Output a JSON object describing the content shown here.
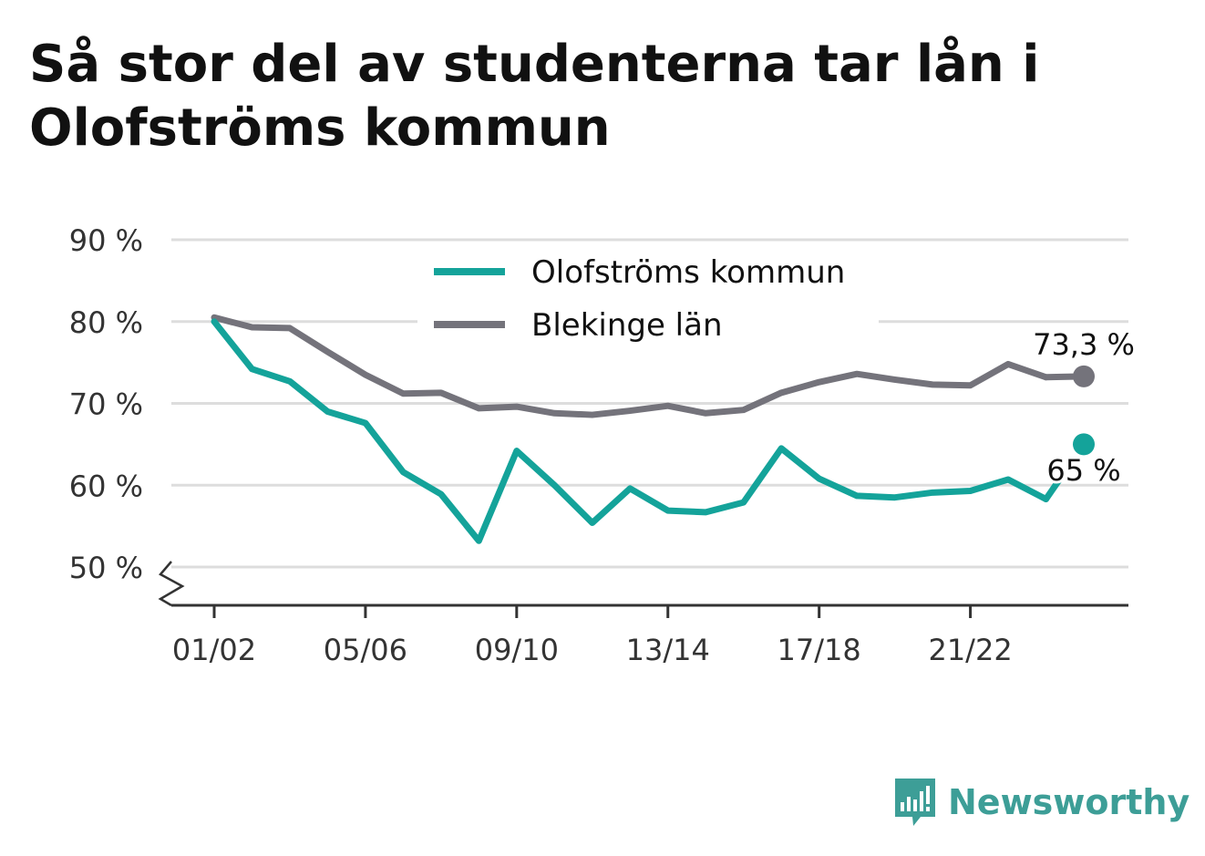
{
  "title": "Så stor del av studenterna tar lån i Olofströms kommun",
  "brand": {
    "name": "Newsworthy"
  },
  "colors": {
    "municipality": "#14a39a",
    "county": "#74737b",
    "grid": "#dddddd",
    "axis": "#333333",
    "brand": "#3d9e97"
  },
  "chart_data": {
    "type": "line",
    "title": "Så stor del av studenterna tar lån i Olofströms kommun",
    "xlabel": "",
    "ylabel": "",
    "x": [
      "01/02",
      "02/03",
      "03/04",
      "04/05",
      "05/06",
      "06/07",
      "07/08",
      "08/09",
      "09/10",
      "10/11",
      "11/12",
      "12/13",
      "13/14",
      "14/15",
      "15/16",
      "16/17",
      "17/18",
      "18/19",
      "19/20",
      "20/21",
      "21/22",
      "22/23",
      "23/24",
      "24/25"
    ],
    "x_tick_labels": [
      "01/02",
      "05/06",
      "09/10",
      "13/14",
      "17/18",
      "21/22"
    ],
    "y_ticks": [
      50,
      60,
      70,
      80,
      90
    ],
    "y_tick_labels": [
      "50 %",
      "60 %",
      "70 %",
      "80 %",
      "90 %"
    ],
    "ylim": [
      50,
      90
    ],
    "y_axis_broken": true,
    "grid": true,
    "legend_position": "top-center",
    "series": [
      {
        "name": "Olofströms kommun",
        "color": "#14a39a",
        "values": [
          80,
          74.2,
          72.7,
          69,
          67.6,
          61.6,
          58.9,
          53.2,
          64.2,
          60,
          55.4,
          59.6,
          56.9,
          56.7,
          57.9,
          64.5,
          60.8,
          58.7,
          58.5,
          59.1,
          59.3,
          60.7,
          58.3,
          65
        ],
        "end_label": "65 %"
      },
      {
        "name": "Blekinge län",
        "color": "#74737b",
        "values": [
          80.5,
          79.3,
          79.2,
          76.3,
          73.5,
          71.2,
          71.3,
          69.4,
          69.6,
          68.8,
          68.6,
          69.1,
          69.7,
          68.8,
          69.2,
          71.3,
          72.6,
          73.6,
          72.9,
          72.3,
          72.2,
          74.8,
          73.2,
          73.3
        ],
        "end_label": "73,3 %"
      }
    ]
  }
}
